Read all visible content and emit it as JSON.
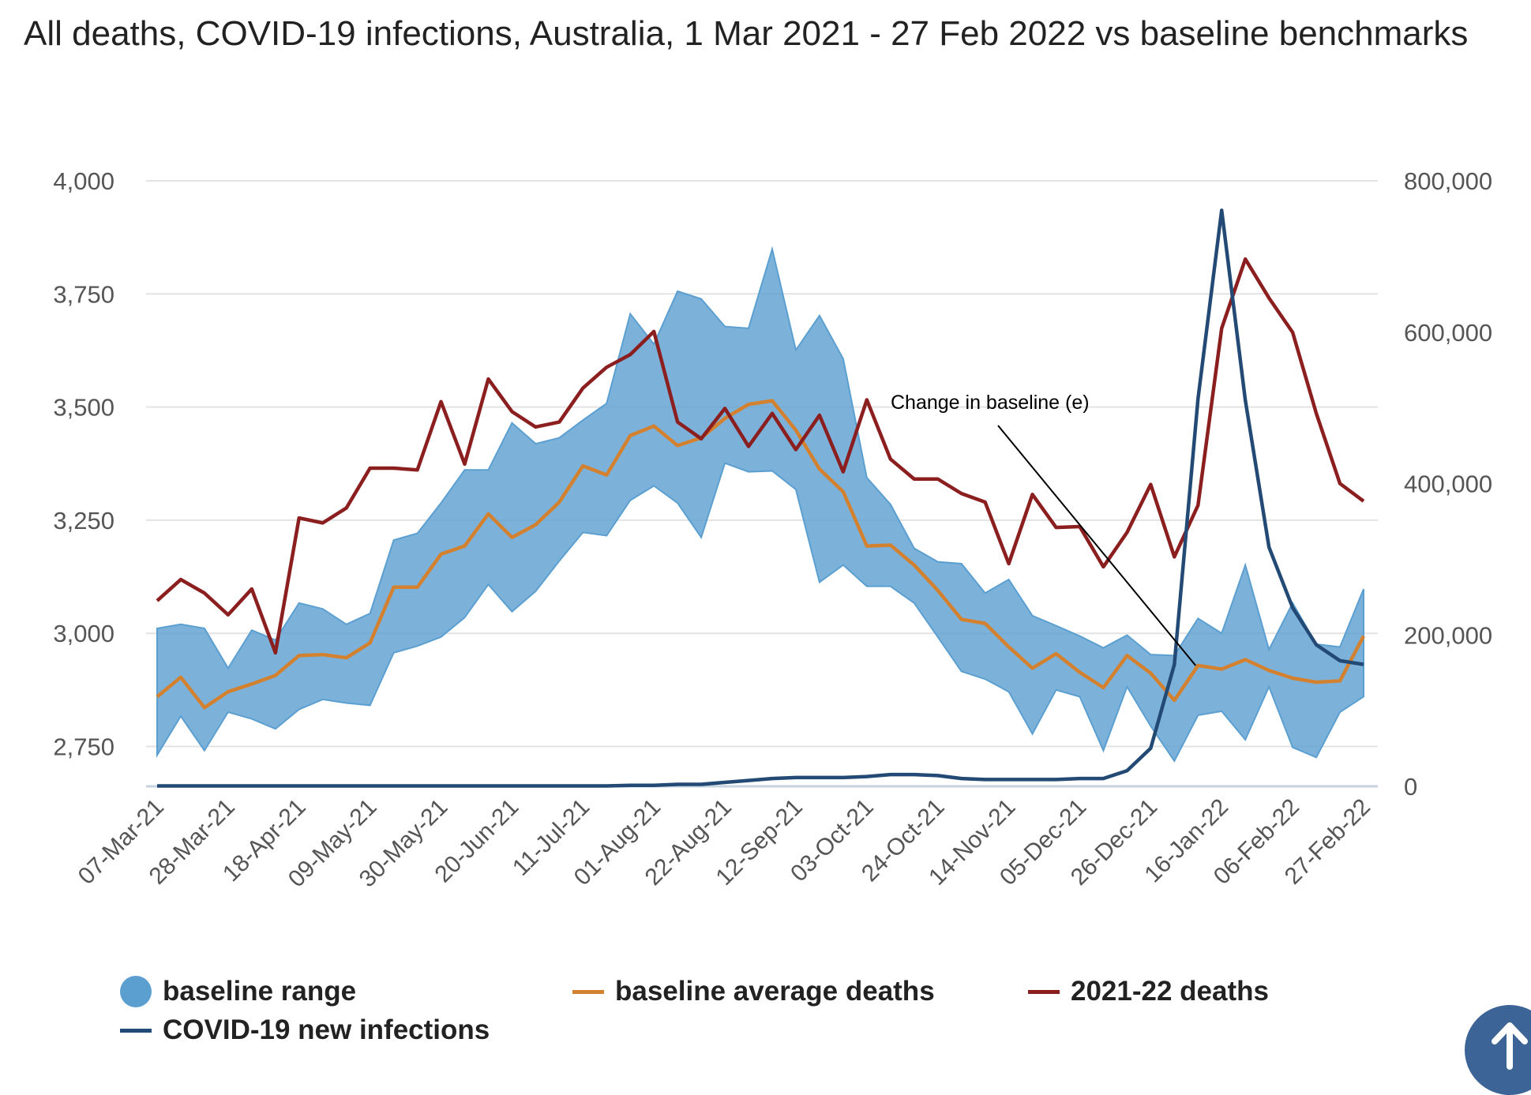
{
  "chart_data": {
    "type": "line",
    "title": "All deaths, COVID-19 infections, Australia, 1 Mar 2021 - 27 Feb 2022 vs baseline benchmarks",
    "x": [
      "07-Mar-21",
      "14-Mar-21",
      "21-Mar-21",
      "28-Mar-21",
      "04-Apr-21",
      "11-Apr-21",
      "18-Apr-21",
      "25-Apr-21",
      "02-May-21",
      "09-May-21",
      "16-May-21",
      "23-May-21",
      "30-May-21",
      "06-Jun-21",
      "13-Jun-21",
      "20-Jun-21",
      "27-Jun-21",
      "04-Jul-21",
      "11-Jul-21",
      "18-Jul-21",
      "25-Jul-21",
      "01-Aug-21",
      "08-Aug-21",
      "15-Aug-21",
      "22-Aug-21",
      "29-Aug-21",
      "05-Sep-21",
      "12-Sep-21",
      "19-Sep-21",
      "26-Sep-21",
      "03-Oct-21",
      "10-Oct-21",
      "17-Oct-21",
      "24-Oct-21",
      "31-Oct-21",
      "07-Nov-21",
      "14-Nov-21",
      "21-Nov-21",
      "28-Nov-21",
      "05-Dec-21",
      "12-Dec-21",
      "19-Dec-21",
      "26-Dec-21",
      "02-Jan-22",
      "09-Jan-22",
      "16-Jan-22",
      "23-Jan-22",
      "30-Jan-22",
      "06-Feb-22",
      "13-Feb-22",
      "20-Feb-22",
      "27-Feb-22"
    ],
    "x_tick_labels": [
      "07-Mar-21",
      "28-Mar-21",
      "18-Apr-21",
      "09-May-21",
      "30-May-21",
      "20-Jun-21",
      "11-Jul-21",
      "01-Aug-21",
      "22-Aug-21",
      "12-Sep-21",
      "03-Oct-21",
      "24-Oct-21",
      "14-Nov-21",
      "05-Dec-21",
      "26-Dec-21",
      "16-Jan-22",
      "06-Feb-22",
      "27-Feb-22"
    ],
    "y_left": {
      "ticks": [
        "2,750",
        "3,000",
        "3,250",
        "3,500",
        "3,750",
        "4,000"
      ],
      "tick_values": [
        2750,
        3000,
        3250,
        3500,
        3750,
        4000
      ],
      "range": [
        2662,
        4000
      ]
    },
    "y_right": {
      "ticks": [
        "0",
        "200,000",
        "400,000",
        "600,000",
        "800,000"
      ],
      "tick_values": [
        0,
        200000,
        400000,
        600000,
        800000
      ],
      "range": [
        0,
        800000
      ]
    },
    "grid": true,
    "legend_position": "bottom",
    "series": [
      {
        "name": "baseline range",
        "type": "area",
        "axis": "left",
        "color": "#5b9fd1",
        "upper": [
          3011,
          3020,
          3011,
          2923,
          3007,
          2985,
          3067,
          3054,
          3020,
          3044,
          3206,
          3221,
          3288,
          3361,
          3361,
          3465,
          3419,
          3432,
          3471,
          3508,
          3706,
          3639,
          3756,
          3739,
          3678,
          3674,
          3849,
          3626,
          3702,
          3607,
          3344,
          3285,
          3188,
          3158,
          3154,
          3089,
          3119,
          3039,
          3017,
          2994,
          2968,
          2996,
          2953,
          2951,
          3033,
          3000,
          3151,
          2964,
          3067,
          2976,
          2970,
          3098
        ],
        "lower": [
          2731,
          2817,
          2741,
          2826,
          2811,
          2789,
          2832,
          2854,
          2846,
          2841,
          2957,
          2972,
          2992,
          3035,
          3108,
          3048,
          3093,
          3160,
          3223,
          3216,
          3294,
          3326,
          3288,
          3212,
          3376,
          3357,
          3359,
          3318,
          3113,
          3151,
          3104,
          3104,
          3067,
          2992,
          2916,
          2899,
          2871,
          2778,
          2875,
          2860,
          2741,
          2882,
          2795,
          2718,
          2819,
          2828,
          2765,
          2882,
          2748,
          2726,
          2826,
          2860
        ]
      },
      {
        "name": "baseline average deaths",
        "type": "line",
        "axis": "left",
        "color": "#d4812f",
        "values": [
          2860,
          2903,
          2836,
          2871,
          2888,
          2907,
          2951,
          2953,
          2946,
          2979,
          3102,
          3102,
          3175,
          3193,
          3264,
          3212,
          3240,
          3290,
          3370,
          3350,
          3437,
          3458,
          3415,
          3432,
          3475,
          3506,
          3514,
          3449,
          3363,
          3313,
          3193,
          3195,
          3151,
          3095,
          3031,
          3022,
          2970,
          2923,
          2955,
          2914,
          2880,
          2951,
          2912,
          2852,
          2929,
          2921,
          2942,
          2918,
          2901,
          2892,
          2895,
          2994
        ]
      },
      {
        "name": "2021-22 deaths",
        "type": "line",
        "axis": "left",
        "color": "#8b1e1e",
        "values": [
          3072,
          3119,
          3089,
          3041,
          3098,
          2957,
          3255,
          3244,
          3277,
          3365,
          3365,
          3361,
          3512,
          3374,
          3562,
          3490,
          3456,
          3467,
          3542,
          3588,
          3616,
          3667,
          3467,
          3430,
          3497,
          3413,
          3486,
          3406,
          3482,
          3357,
          3516,
          3385,
          3341,
          3341,
          3309,
          3290,
          3154,
          3307,
          3234,
          3236,
          3147,
          3223,
          3329,
          3169,
          3283,
          3674,
          3827,
          3741,
          3665,
          3486,
          3331,
          3292
        ]
      },
      {
        "name": "COVID-19 new infections",
        "type": "line",
        "axis": "right",
        "color": "#234a75",
        "values": [
          500,
          500,
          500,
          500,
          500,
          500,
          500,
          500,
          500,
          500,
          500,
          500,
          500,
          500,
          500,
          500,
          500,
          500,
          500,
          500,
          1300,
          1300,
          2600,
          2600,
          5200,
          7700,
          10300,
          11600,
          11600,
          11600,
          12900,
          15500,
          15500,
          14200,
          10300,
          9000,
          9000,
          9000,
          9000,
          10300,
          10300,
          20600,
          50300,
          161000,
          512000,
          761000,
          510000,
          316000,
          236000,
          187000,
          166000,
          161000
        ]
      }
    ],
    "annotations": [
      {
        "text": "Change in baseline (e)",
        "points_to": "09-Jan-22"
      }
    ]
  },
  "legend": [
    "baseline range",
    "baseline average deaths",
    "2021-22 deaths",
    "COVID-19 new infections"
  ],
  "scroll_top_icon": "arrow-up-icon"
}
